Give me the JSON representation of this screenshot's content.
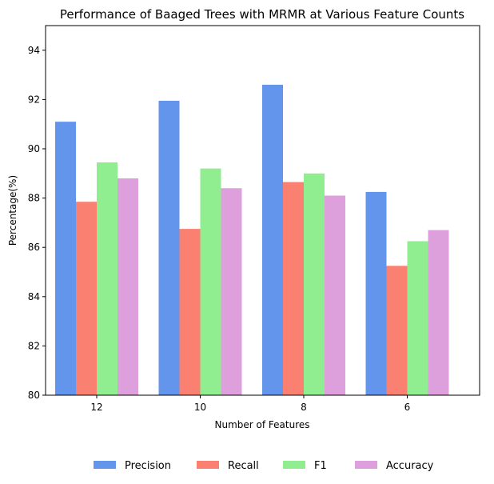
{
  "chart_data": {
    "type": "bar",
    "title": "Performance of Baaged Trees with MRMR at Various Feature Counts",
    "xlabel": "Number of Features",
    "ylabel": "Percentage(%)",
    "categories": [
      "12",
      "10",
      "8",
      "6"
    ],
    "series": [
      {
        "name": "Precision",
        "color": "#6495ED",
        "values": [
          91.1,
          91.95,
          92.6,
          88.25
        ]
      },
      {
        "name": "Recall",
        "color": "#FA8072",
        "values": [
          87.85,
          86.75,
          88.65,
          85.25
        ]
      },
      {
        "name": "F1",
        "color": "#90EE90",
        "values": [
          89.45,
          89.2,
          89.0,
          86.25
        ]
      },
      {
        "name": "Accuracy",
        "color": "#DDA0DD",
        "values": [
          88.8,
          88.4,
          88.1,
          86.7
        ]
      }
    ],
    "ylim": [
      80,
      95
    ],
    "yticks": [
      80,
      82,
      84,
      86,
      88,
      90,
      92,
      94
    ],
    "grid": false,
    "legend_position": "bottom-center"
  }
}
